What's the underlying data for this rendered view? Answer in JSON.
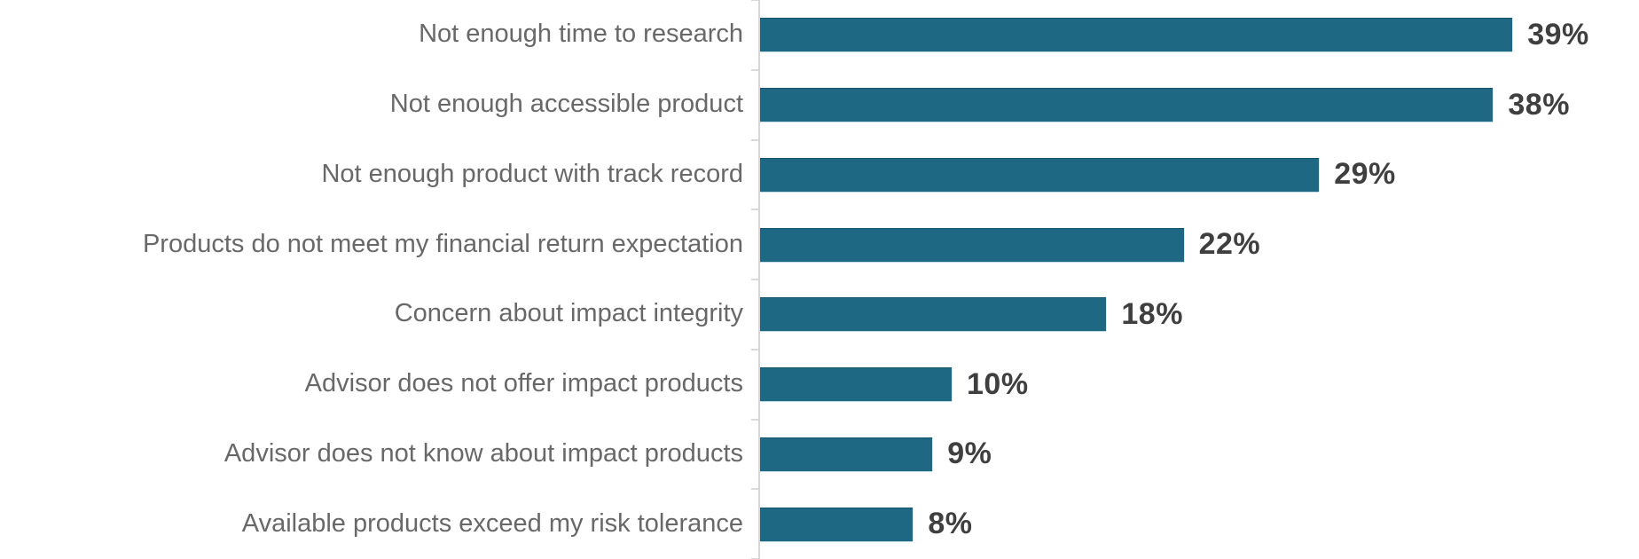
{
  "chart_data": {
    "type": "bar",
    "orientation": "horizontal",
    "title": "",
    "xlabel": "",
    "ylabel": "",
    "categories": [
      "Not enough time to research",
      "Not enough accessible product",
      "Not enough product with track record",
      "Products do not meet my financial return expectation",
      "Concern about impact integrity",
      "Advisor does not offer impact products",
      "Advisor does not know about impact products",
      "Available products exceed my risk tolerance"
    ],
    "values": [
      39,
      38,
      29,
      22,
      18,
      10,
      9,
      8
    ],
    "value_labels": [
      "39%",
      "38%",
      "29%",
      "22%",
      "18%",
      "10%",
      "9%",
      "8%"
    ],
    "value_suffix": "%",
    "xlim": [
      0,
      45.5
    ],
    "grid": false,
    "legend": false,
    "data_labels_position": "outside-end"
  },
  "colors": {
    "bar_fill": "#1F6883",
    "bar_edge": "#B9D8E4",
    "category_label": "#686868",
    "value_label": "#3F3F3F",
    "axis_line": "#D6D6D6"
  }
}
